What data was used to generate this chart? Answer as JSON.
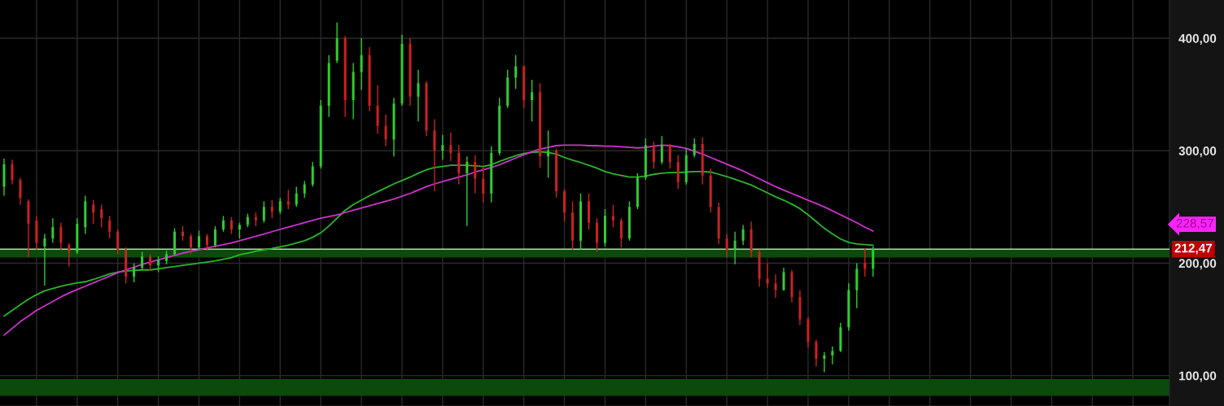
{
  "chart_data": {
    "type": "candlestick",
    "categories": [
      null,
      null,
      null,
      null,
      null,
      null,
      null,
      null,
      null,
      null,
      null,
      null,
      null,
      null,
      null,
      null,
      null,
      null,
      null,
      null,
      null,
      null,
      null,
      null,
      null,
      null,
      null,
      null,
      null,
      null,
      null,
      null,
      null,
      null,
      null,
      null,
      null,
      null,
      null,
      null,
      null,
      null,
      null,
      null,
      null,
      null,
      null,
      null,
      null,
      null,
      null,
      null,
      null,
      null,
      null,
      null,
      null,
      null,
      null,
      null,
      null,
      null,
      null,
      null,
      null,
      null,
      null,
      null,
      null,
      null,
      null,
      null,
      null,
      null,
      null,
      null,
      null,
      null,
      null,
      null,
      null,
      null,
      null,
      null,
      null,
      null,
      null,
      null,
      null,
      null,
      null,
      null,
      null,
      null,
      null,
      null,
      null,
      null,
      null,
      null,
      null,
      null,
      null,
      null,
      null,
      null,
      null,
      null,
      null,
      null,
      null,
      null,
      null,
      null,
      null,
      null,
      null,
      null,
      null,
      null,
      null,
      null,
      null,
      null,
      null,
      null,
      null,
      null,
      null,
      null,
      null,
      null,
      null,
      null,
      null,
      null,
      null,
      null,
      null,
      null,
      null,
      null,
      null,
      null
    ],
    "ohlc": [
      [
        268,
        293,
        260,
        288
      ],
      [
        288,
        292,
        270,
        274
      ],
      [
        274,
        276,
        252,
        258
      ],
      [
        255,
        257,
        205,
        235
      ],
      [
        238,
        242,
        212,
        218
      ],
      [
        215,
        226,
        180,
        222
      ],
      [
        222,
        240,
        218,
        232
      ],
      [
        232,
        236,
        212,
        218
      ],
      [
        216,
        218,
        197,
        210
      ],
      [
        210,
        240,
        208,
        235
      ],
      [
        232,
        260,
        226,
        255
      ],
      [
        252,
        256,
        235,
        245
      ],
      [
        248,
        252,
        232,
        240
      ],
      [
        238,
        242,
        222,
        228
      ],
      [
        228,
        230,
        208,
        212
      ],
      [
        212,
        214,
        182,
        188
      ],
      [
        188,
        200,
        183,
        196
      ],
      [
        196,
        210,
        194,
        206
      ],
      [
        206,
        208,
        193,
        198
      ],
      [
        198,
        206,
        192,
        203
      ],
      [
        202,
        211,
        199,
        208
      ],
      [
        208,
        231,
        207,
        228
      ],
      [
        228,
        233,
        220,
        224
      ],
      [
        224,
        226,
        208,
        214
      ],
      [
        214,
        229,
        212,
        224
      ],
      [
        224,
        226,
        211,
        216
      ],
      [
        216,
        233,
        214,
        230
      ],
      [
        230,
        242,
        228,
        238
      ],
      [
        238,
        241,
        226,
        230
      ],
      [
        230,
        236,
        222,
        234
      ],
      [
        234,
        244,
        232,
        241
      ],
      [
        241,
        245,
        233,
        238
      ],
      [
        238,
        255,
        236,
        250
      ],
      [
        250,
        256,
        240,
        246
      ],
      [
        246,
        258,
        244,
        255
      ],
      [
        255,
        265,
        248,
        252
      ],
      [
        252,
        268,
        250,
        262
      ],
      [
        262,
        273,
        258,
        270
      ],
      [
        270,
        290,
        268,
        286
      ],
      [
        286,
        345,
        284,
        340
      ],
      [
        340,
        385,
        330,
        378
      ],
      [
        380,
        414,
        378,
        400
      ],
      [
        400,
        402,
        330,
        345
      ],
      [
        345,
        378,
        328,
        370
      ],
      [
        370,
        400,
        354,
        385
      ],
      [
        385,
        392,
        335,
        340
      ],
      [
        340,
        358,
        315,
        322
      ],
      [
        322,
        332,
        304,
        310
      ],
      [
        310,
        347,
        295,
        342
      ],
      [
        342,
        403,
        340,
        395
      ],
      [
        395,
        400,
        340,
        348
      ],
      [
        348,
        372,
        326,
        360
      ],
      [
        360,
        362,
        313,
        318
      ],
      [
        318,
        328,
        264,
        300
      ],
      [
        300,
        314,
        292,
        305
      ],
      [
        305,
        316,
        291,
        298
      ],
      [
        298,
        305,
        270,
        280
      ],
      [
        280,
        295,
        233,
        290
      ],
      [
        290,
        296,
        262,
        275
      ],
      [
        275,
        286,
        254,
        262
      ],
      [
        262,
        304,
        254,
        298
      ],
      [
        298,
        347,
        296,
        340
      ],
      [
        340,
        372,
        338,
        365
      ],
      [
        365,
        385,
        355,
        375
      ],
      [
        375,
        376,
        338,
        345
      ],
      [
        345,
        363,
        326,
        352
      ],
      [
        352,
        360,
        285,
        295
      ],
      [
        295,
        318,
        276,
        300
      ],
      [
        300,
        302,
        258,
        264
      ],
      [
        264,
        266,
        237,
        245
      ],
      [
        245,
        255,
        212,
        220
      ],
      [
        220,
        262,
        212,
        255
      ],
      [
        255,
        262,
        230,
        236
      ],
      [
        236,
        240,
        210,
        218
      ],
      [
        218,
        248,
        215,
        242
      ],
      [
        242,
        252,
        232,
        238
      ],
      [
        238,
        240,
        214,
        222
      ],
      [
        222,
        255,
        220,
        250
      ],
      [
        250,
        280,
        248,
        276
      ],
      [
        276,
        311,
        274,
        305
      ],
      [
        305,
        308,
        284,
        290
      ],
      [
        290,
        313,
        288,
        305
      ],
      [
        305,
        306,
        284,
        290
      ],
      [
        290,
        296,
        266,
        272
      ],
      [
        272,
        302,
        270,
        296
      ],
      [
        296,
        311,
        294,
        306
      ],
      [
        306,
        312,
        270,
        278
      ],
      [
        278,
        284,
        245,
        250
      ],
      [
        250,
        254,
        217,
        222
      ],
      [
        222,
        226,
        205,
        212
      ],
      [
        212,
        228,
        199,
        220
      ],
      [
        220,
        234,
        216,
        230
      ],
      [
        230,
        237,
        205,
        210
      ],
      [
        210,
        212,
        179,
        186
      ],
      [
        186,
        200,
        178,
        182
      ],
      [
        182,
        190,
        169,
        176
      ],
      [
        176,
        196,
        176,
        192
      ],
      [
        192,
        194,
        165,
        170
      ],
      [
        170,
        176,
        145,
        150
      ],
      [
        150,
        152,
        125,
        130
      ],
      [
        130,
        132,
        108,
        115
      ],
      [
        115,
        121,
        103,
        118
      ],
      [
        118,
        126,
        110,
        122
      ],
      [
        122,
        147,
        121,
        143
      ],
      [
        143,
        182,
        140,
        176
      ],
      [
        176,
        200,
        160,
        195
      ],
      [
        200,
        213,
        188,
        195
      ],
      [
        195,
        215,
        188,
        212.47
      ],
      null,
      null,
      null,
      null,
      null,
      null,
      null,
      null,
      null,
      null,
      null,
      null,
      null,
      null,
      null,
      null,
      null,
      null,
      null,
      null,
      null,
      null,
      null,
      null,
      null,
      null,
      null,
      null,
      null,
      null,
      null,
      null,
      null,
      null,
      null,
      null
    ],
    "colors": [
      "#33cc33",
      "#cc2222",
      "#cc2222",
      "#cc2222",
      "#cc2222",
      "#33cc33",
      "#33cc33",
      "#cc2222",
      "#cc2222",
      "#33cc33",
      "#33cc33",
      "#cc2222",
      "#cc2222",
      "#cc2222",
      "#cc2222",
      "#cc2222",
      "#33cc33",
      "#33cc33",
      "#cc2222",
      "#33cc33",
      "#33cc33",
      "#33cc33",
      "#cc2222",
      "#cc2222",
      "#33cc33",
      "#cc2222",
      "#33cc33",
      "#33cc33",
      "#cc2222",
      "#33cc33",
      "#33cc33",
      "#cc2222",
      "#33cc33",
      "#cc2222",
      "#33cc33",
      "#cc2222",
      "#33cc33",
      "#33cc33",
      "#33cc33",
      "#33cc33",
      "#33cc33",
      "#33cc33",
      "#cc2222",
      "#33cc33",
      "#33cc33",
      "#cc2222",
      "#cc2222",
      "#cc2222",
      "#33cc33",
      "#33cc33",
      "#cc2222",
      "#33cc33",
      "#cc2222",
      "#cc2222",
      "#33cc33",
      "#cc2222",
      "#cc2222",
      "#33cc33",
      "#cc2222",
      "#cc2222",
      "#33cc33",
      "#33cc33",
      "#33cc33",
      "#33cc33",
      "#cc2222",
      "#33cc33",
      "#cc2222",
      "#33cc33",
      "#cc2222",
      "#cc2222",
      "#cc2222",
      "#33cc33",
      "#cc2222",
      "#cc2222",
      "#33cc33",
      "#cc2222",
      "#cc2222",
      "#33cc33",
      "#33cc33",
      "#33cc33",
      "#cc2222",
      "#33cc33",
      "#cc2222",
      "#cc2222",
      "#33cc33",
      "#33cc33",
      "#cc2222",
      "#cc2222",
      "#cc2222",
      "#cc2222",
      "#33cc33",
      "#33cc33",
      "#cc2222",
      "#cc2222",
      "#cc2222",
      "#cc2222",
      "#33cc33",
      "#cc2222",
      "#cc2222",
      "#cc2222",
      "#cc2222",
      "#33cc33",
      "#33cc33",
      "#33cc33",
      "#33cc33",
      "#33cc33",
      "#cc2222",
      "#33cc33",
      null,
      null,
      null,
      null,
      null,
      null,
      null,
      null,
      null,
      null,
      null,
      null,
      null,
      null,
      null,
      null,
      null,
      null,
      null,
      null,
      null,
      null,
      null,
      null,
      null,
      null,
      null,
      null,
      null,
      null,
      null,
      null,
      null,
      null,
      null,
      null
    ],
    "series": [
      {
        "type": "line",
        "color": "#2ab52a",
        "values": [
          153,
          158,
          163,
          168,
          172,
          175.5,
          177.5,
          179.5,
          181,
          182.5,
          183.5,
          185.5,
          188,
          190.5,
          192,
          193,
          193.5,
          194,
          194,
          195,
          196,
          197,
          198,
          199,
          200,
          201,
          202,
          203.5,
          205,
          207.5,
          209,
          210.5,
          212,
          213,
          214.5,
          216,
          218,
          220,
          223,
          227,
          233,
          240,
          247,
          252,
          256,
          260,
          263.5,
          267,
          270.5,
          273.5,
          276.5,
          280,
          283,
          285,
          286,
          287,
          287,
          287,
          286.5,
          286,
          287.5,
          290.5,
          293,
          295.5,
          297.5,
          298.5,
          299,
          298.5,
          297,
          294,
          291.5,
          289.5,
          287,
          284.5,
          281.5,
          279.5,
          278,
          276.5,
          276.5,
          277.5,
          279,
          280,
          280.5,
          280.5,
          281,
          281.5,
          281.5,
          281,
          279,
          277,
          274.5,
          272,
          269.5,
          266,
          262.5,
          259,
          256,
          252.5,
          248.5,
          243,
          237,
          231,
          226,
          221.5,
          218.5,
          217,
          216.5,
          216,
          null,
          null,
          null,
          null,
          null,
          null,
          null,
          null,
          null,
          null,
          null,
          null,
          null,
          null,
          null,
          null,
          null,
          null,
          null,
          null,
          null,
          null,
          null,
          null,
          null,
          null,
          null,
          null,
          null,
          null,
          null,
          null,
          null,
          null,
          null,
          null
        ]
      },
      {
        "type": "line",
        "color": "#cc33cc",
        "values": [
          136,
          142,
          148,
          153,
          158,
          162,
          166,
          170,
          173.5,
          176.5,
          179.5,
          182.5,
          185.5,
          188.5,
          191.5,
          194,
          196.5,
          199,
          201,
          203,
          205,
          207,
          209,
          210.5,
          212,
          213.5,
          215,
          216.5,
          218,
          220,
          222,
          224,
          226,
          228,
          230,
          232,
          234,
          236,
          238,
          240,
          241.5,
          243,
          245,
          247,
          249,
          251,
          253,
          255,
          257,
          259.5,
          262,
          265,
          268,
          270.5,
          272.5,
          274.5,
          276.5,
          278.5,
          281,
          283,
          285,
          287.5,
          290.5,
          293.5,
          296.5,
          299,
          301.5,
          303,
          304.5,
          305,
          305,
          305,
          304.5,
          304.5,
          304,
          304,
          303.5,
          303,
          302.5,
          303,
          304,
          305,
          304.5,
          303.5,
          302,
          299.5,
          297,
          294,
          291,
          288,
          285,
          282,
          278.5,
          275,
          271.5,
          268,
          265,
          262,
          259,
          256,
          253,
          250,
          246.5,
          243,
          239.5,
          236,
          232,
          228.5,
          null,
          null,
          null,
          null,
          null,
          null,
          null,
          null,
          null,
          null,
          null,
          null,
          null,
          null,
          null,
          null,
          null,
          null,
          null,
          null,
          null,
          null,
          null,
          null,
          null,
          null,
          null,
          null,
          null,
          null,
          null,
          null,
          null,
          null,
          null,
          null
        ]
      }
    ],
    "ylim": [
      73,
      434
    ],
    "yticks": [
      {
        "value": 100,
        "label": "100,00"
      },
      {
        "value": 200,
        "label": "200,00"
      },
      {
        "value": 300,
        "label": "300,00"
      },
      {
        "value": 400,
        "label": "400,00"
      }
    ],
    "grid": true,
    "tick_labels": "y",
    "bands": [
      {
        "axis": "y",
        "from": 205,
        "to": 212.47,
        "color": "#0b4a0b"
      },
      {
        "axis": "y",
        "from": 82,
        "to": 97,
        "color": "#0b4a0b"
      }
    ],
    "ref_lines": [
      {
        "axis": "y",
        "value": 212.47,
        "label": "212,47",
        "color": "#a8e0a8"
      }
    ],
    "annotations": [
      "228,57"
    ]
  }
}
